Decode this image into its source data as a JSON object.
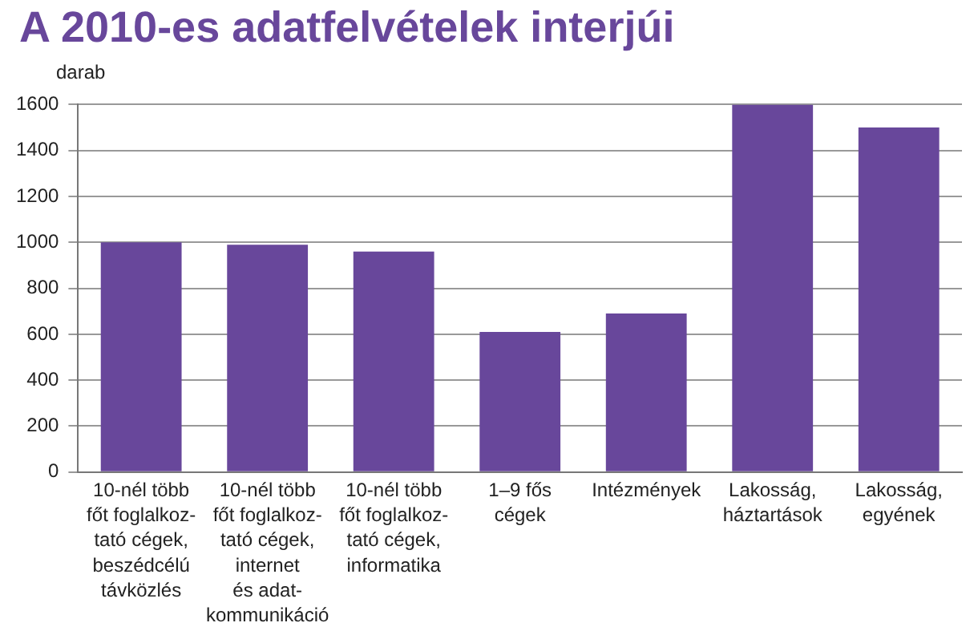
{
  "chart_data": {
    "type": "bar",
    "title": "A 2010-es adatfelvételek interjúi",
    "ylabel": "darab",
    "categories": [
      "10-nél több\nfőt foglalkoz-\ntató cégek,\nbeszédcélú\ntávközlés",
      "10-nél több\nfőt foglalkoz-\ntató cégek,\ninternet\nés adat-\nkommunikáció",
      "10-nél több\nfőt foglalkoz-\ntató cégek,\ninformatika",
      "1–9 fős\ncégek",
      "Intézmények",
      "Lakosság,\nháztartások",
      "Lakosság,\negyének"
    ],
    "values": [
      1000,
      990,
      960,
      610,
      690,
      1600,
      1500
    ],
    "color": "#68479b",
    "ylim": [
      0,
      1600
    ],
    "yticks": [
      0,
      200,
      400,
      600,
      800,
      1000,
      1200,
      1400,
      1600
    ],
    "grid": "y",
    "legend": false
  }
}
